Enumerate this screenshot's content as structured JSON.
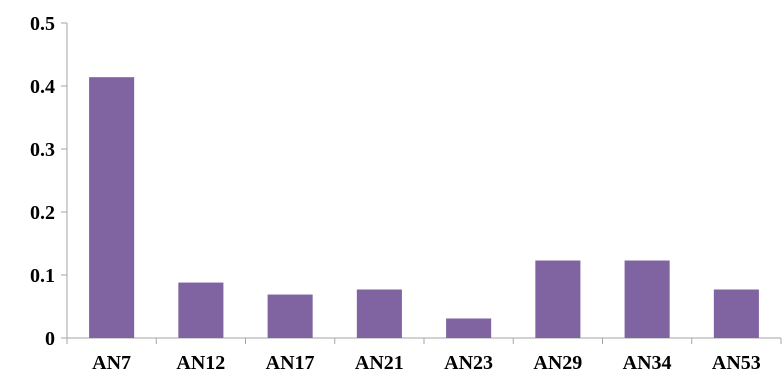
{
  "chart_data": {
    "type": "bar",
    "categories": [
      "AN7",
      "AN12",
      "AN17",
      "AN21",
      "AN23",
      "AN29",
      "AN34",
      "AN53"
    ],
    "values": [
      0.414,
      0.088,
      0.069,
      0.077,
      0.031,
      0.123,
      0.123,
      0.077
    ],
    "ylim": [
      0,
      0.5
    ],
    "yticks": [
      0,
      0.1,
      0.2,
      0.3,
      0.4,
      0.5
    ],
    "ytick_labels": [
      "0",
      "0.1",
      "0.2",
      "0.3",
      "0.4",
      "0.5"
    ],
    "grid": false,
    "legend": "none",
    "bar_color": "#8064a2"
  }
}
